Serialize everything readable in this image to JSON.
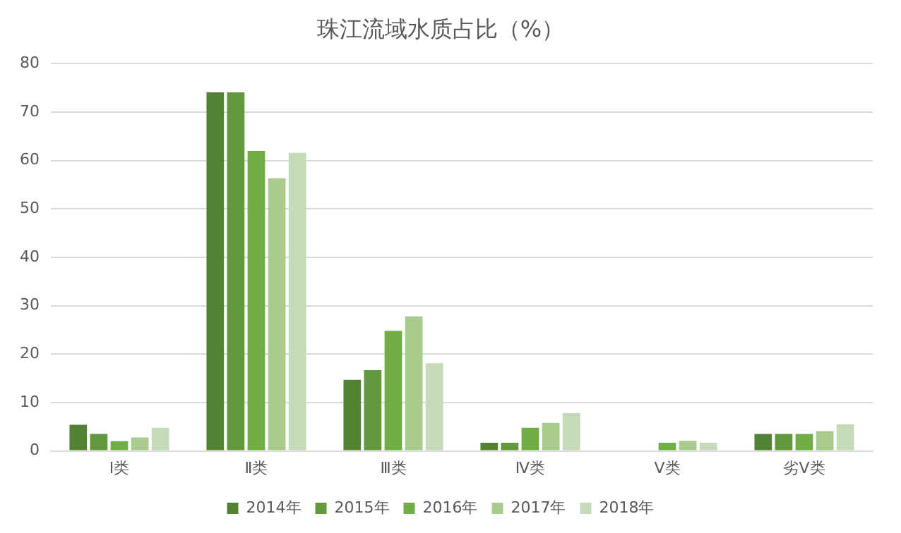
{
  "chart_data": {
    "type": "bar",
    "title": "珠江流域水质占比（%）",
    "categories": [
      "Ⅰ类",
      "Ⅱ类",
      "Ⅲ类",
      "Ⅳ类",
      "Ⅴ类",
      "劣Ⅴ类"
    ],
    "series": [
      {
        "name": "2014年",
        "color": "#548235",
        "values": [
          5.4,
          74.1,
          14.7,
          1.7,
          0,
          3.5
        ]
      },
      {
        "name": "2015年",
        "color": "#62993e",
        "values": [
          3.5,
          74.1,
          16.7,
          1.7,
          0,
          3.5
        ]
      },
      {
        "name": "2016年",
        "color": "#70ad47",
        "values": [
          2.0,
          62.0,
          24.8,
          4.8,
          1.7,
          3.5
        ]
      },
      {
        "name": "2017年",
        "color": "#a9cc8e",
        "values": [
          2.8,
          56.3,
          27.8,
          5.8,
          2.1,
          4.1
        ]
      },
      {
        "name": "2018年",
        "color": "#c5dab9",
        "values": [
          4.8,
          61.6,
          18.1,
          7.8,
          1.7,
          5.5
        ]
      }
    ],
    "ylim": [
      0,
      80
    ],
    "yticks": [
      0,
      10,
      20,
      30,
      40,
      50,
      60,
      70,
      80
    ],
    "grid": "y",
    "legend": "bottom"
  }
}
